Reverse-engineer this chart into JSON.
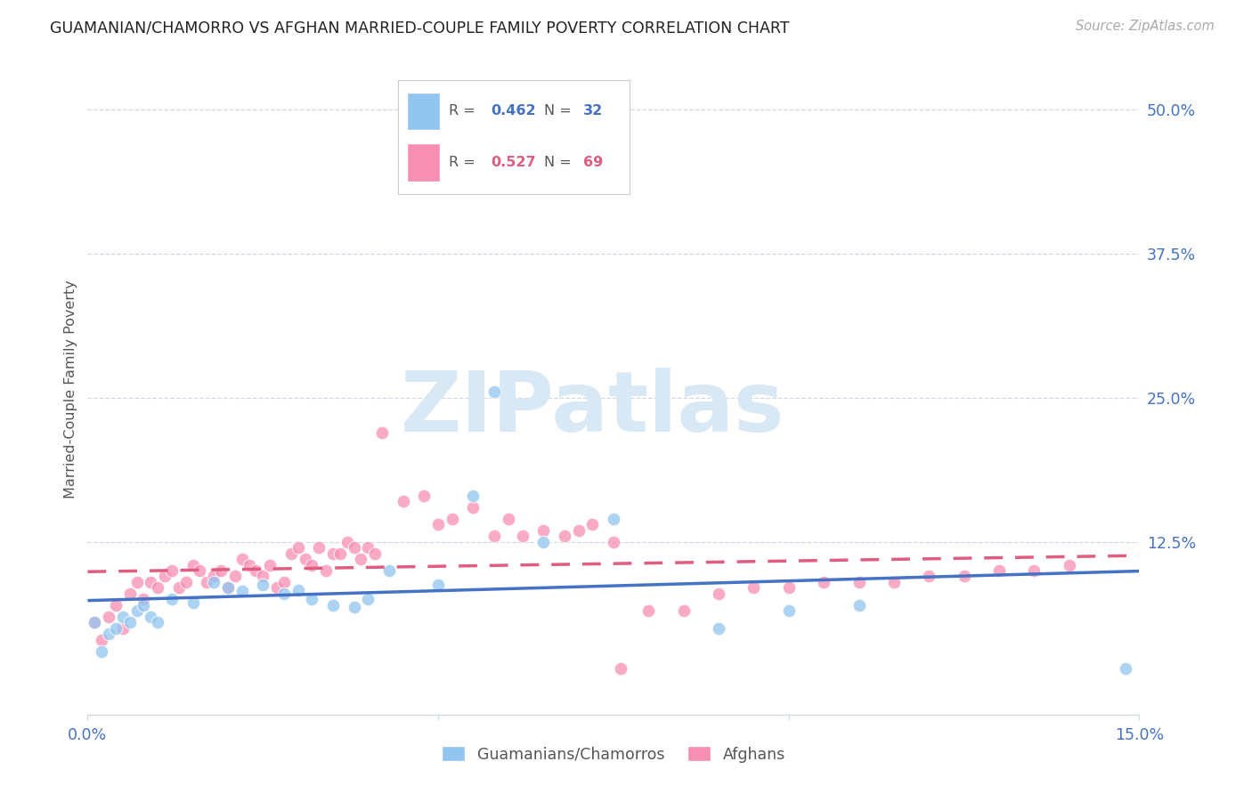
{
  "title": "GUAMANIAN/CHAMORRO VS AFGHAN MARRIED-COUPLE FAMILY POVERTY CORRELATION CHART",
  "source": "Source: ZipAtlas.com",
  "ylabel": "Married-Couple Family Poverty",
  "xlim": [
    0.0,
    0.15
  ],
  "ylim": [
    -0.025,
    0.54
  ],
  "y_tick_vals": [
    0.125,
    0.25,
    0.375,
    0.5
  ],
  "y_tick_labels": [
    "12.5%",
    "25.0%",
    "37.5%",
    "50.0%"
  ],
  "x_tick_vals": [
    0.0,
    0.05,
    0.1,
    0.15
  ],
  "x_tick_labels": [
    "0.0%",
    "",
    "",
    "15.0%"
  ],
  "legend_blue_r": "R = 0.462",
  "legend_blue_n": "N = 32",
  "legend_pink_r": "R = 0.527",
  "legend_pink_n": "N = 69",
  "legend_label_blue": "Guamanians/Chamorros",
  "legend_label_pink": "Afghans",
  "blue_color": "#92c5f0",
  "pink_color": "#f78fb3",
  "blue_line_color": "#4472c4",
  "pink_line_color": "#e05c80",
  "r_n_color_blue": "#4472c4",
  "r_n_color_pink": "#e05c80",
  "watermark_text": "ZIPatlas",
  "watermark_color": "#d8e8f5",
  "grid_color": "#d0d8e8",
  "spine_color": "#d0d8e8",
  "title_color": "#222222",
  "source_color": "#aaaaaa",
  "tick_label_color": "#4472c4",
  "ylabel_color": "#555555",
  "blue_points": [
    [
      0.001,
      0.055
    ],
    [
      0.002,
      0.03
    ],
    [
      0.003,
      0.045
    ],
    [
      0.004,
      0.05
    ],
    [
      0.005,
      0.06
    ],
    [
      0.006,
      0.055
    ],
    [
      0.007,
      0.065
    ],
    [
      0.008,
      0.07
    ],
    [
      0.009,
      0.06
    ],
    [
      0.01,
      0.055
    ],
    [
      0.012,
      0.075
    ],
    [
      0.015,
      0.072
    ],
    [
      0.018,
      0.09
    ],
    [
      0.02,
      0.085
    ],
    [
      0.022,
      0.082
    ],
    [
      0.025,
      0.088
    ],
    [
      0.028,
      0.08
    ],
    [
      0.03,
      0.083
    ],
    [
      0.032,
      0.075
    ],
    [
      0.035,
      0.07
    ],
    [
      0.038,
      0.068
    ],
    [
      0.04,
      0.075
    ],
    [
      0.043,
      0.1
    ],
    [
      0.05,
      0.088
    ],
    [
      0.055,
      0.165
    ],
    [
      0.058,
      0.255
    ],
    [
      0.065,
      0.125
    ],
    [
      0.075,
      0.145
    ],
    [
      0.09,
      0.05
    ],
    [
      0.1,
      0.065
    ],
    [
      0.11,
      0.07
    ],
    [
      0.148,
      0.015
    ]
  ],
  "pink_points": [
    [
      0.001,
      0.055
    ],
    [
      0.002,
      0.04
    ],
    [
      0.003,
      0.06
    ],
    [
      0.004,
      0.07
    ],
    [
      0.005,
      0.05
    ],
    [
      0.006,
      0.08
    ],
    [
      0.007,
      0.09
    ],
    [
      0.008,
      0.075
    ],
    [
      0.009,
      0.09
    ],
    [
      0.01,
      0.085
    ],
    [
      0.011,
      0.095
    ],
    [
      0.012,
      0.1
    ],
    [
      0.013,
      0.085
    ],
    [
      0.014,
      0.09
    ],
    [
      0.015,
      0.105
    ],
    [
      0.016,
      0.1
    ],
    [
      0.017,
      0.09
    ],
    [
      0.018,
      0.095
    ],
    [
      0.019,
      0.1
    ],
    [
      0.02,
      0.085
    ],
    [
      0.021,
      0.095
    ],
    [
      0.022,
      0.11
    ],
    [
      0.023,
      0.105
    ],
    [
      0.024,
      0.1
    ],
    [
      0.025,
      0.095
    ],
    [
      0.026,
      0.105
    ],
    [
      0.027,
      0.085
    ],
    [
      0.028,
      0.09
    ],
    [
      0.029,
      0.115
    ],
    [
      0.03,
      0.12
    ],
    [
      0.031,
      0.11
    ],
    [
      0.032,
      0.105
    ],
    [
      0.033,
      0.12
    ],
    [
      0.034,
      0.1
    ],
    [
      0.035,
      0.115
    ],
    [
      0.036,
      0.115
    ],
    [
      0.037,
      0.125
    ],
    [
      0.038,
      0.12
    ],
    [
      0.039,
      0.11
    ],
    [
      0.04,
      0.12
    ],
    [
      0.041,
      0.115
    ],
    [
      0.042,
      0.22
    ],
    [
      0.045,
      0.16
    ],
    [
      0.048,
      0.165
    ],
    [
      0.05,
      0.14
    ],
    [
      0.052,
      0.145
    ],
    [
      0.055,
      0.155
    ],
    [
      0.058,
      0.13
    ],
    [
      0.06,
      0.145
    ],
    [
      0.062,
      0.13
    ],
    [
      0.065,
      0.135
    ],
    [
      0.068,
      0.13
    ],
    [
      0.07,
      0.135
    ],
    [
      0.072,
      0.14
    ],
    [
      0.075,
      0.125
    ],
    [
      0.076,
      0.015
    ],
    [
      0.08,
      0.065
    ],
    [
      0.085,
      0.065
    ],
    [
      0.09,
      0.08
    ],
    [
      0.095,
      0.085
    ],
    [
      0.1,
      0.085
    ],
    [
      0.105,
      0.09
    ],
    [
      0.11,
      0.09
    ],
    [
      0.115,
      0.09
    ],
    [
      0.12,
      0.095
    ],
    [
      0.125,
      0.095
    ],
    [
      0.13,
      0.1
    ],
    [
      0.135,
      0.1
    ],
    [
      0.14,
      0.105
    ]
  ]
}
